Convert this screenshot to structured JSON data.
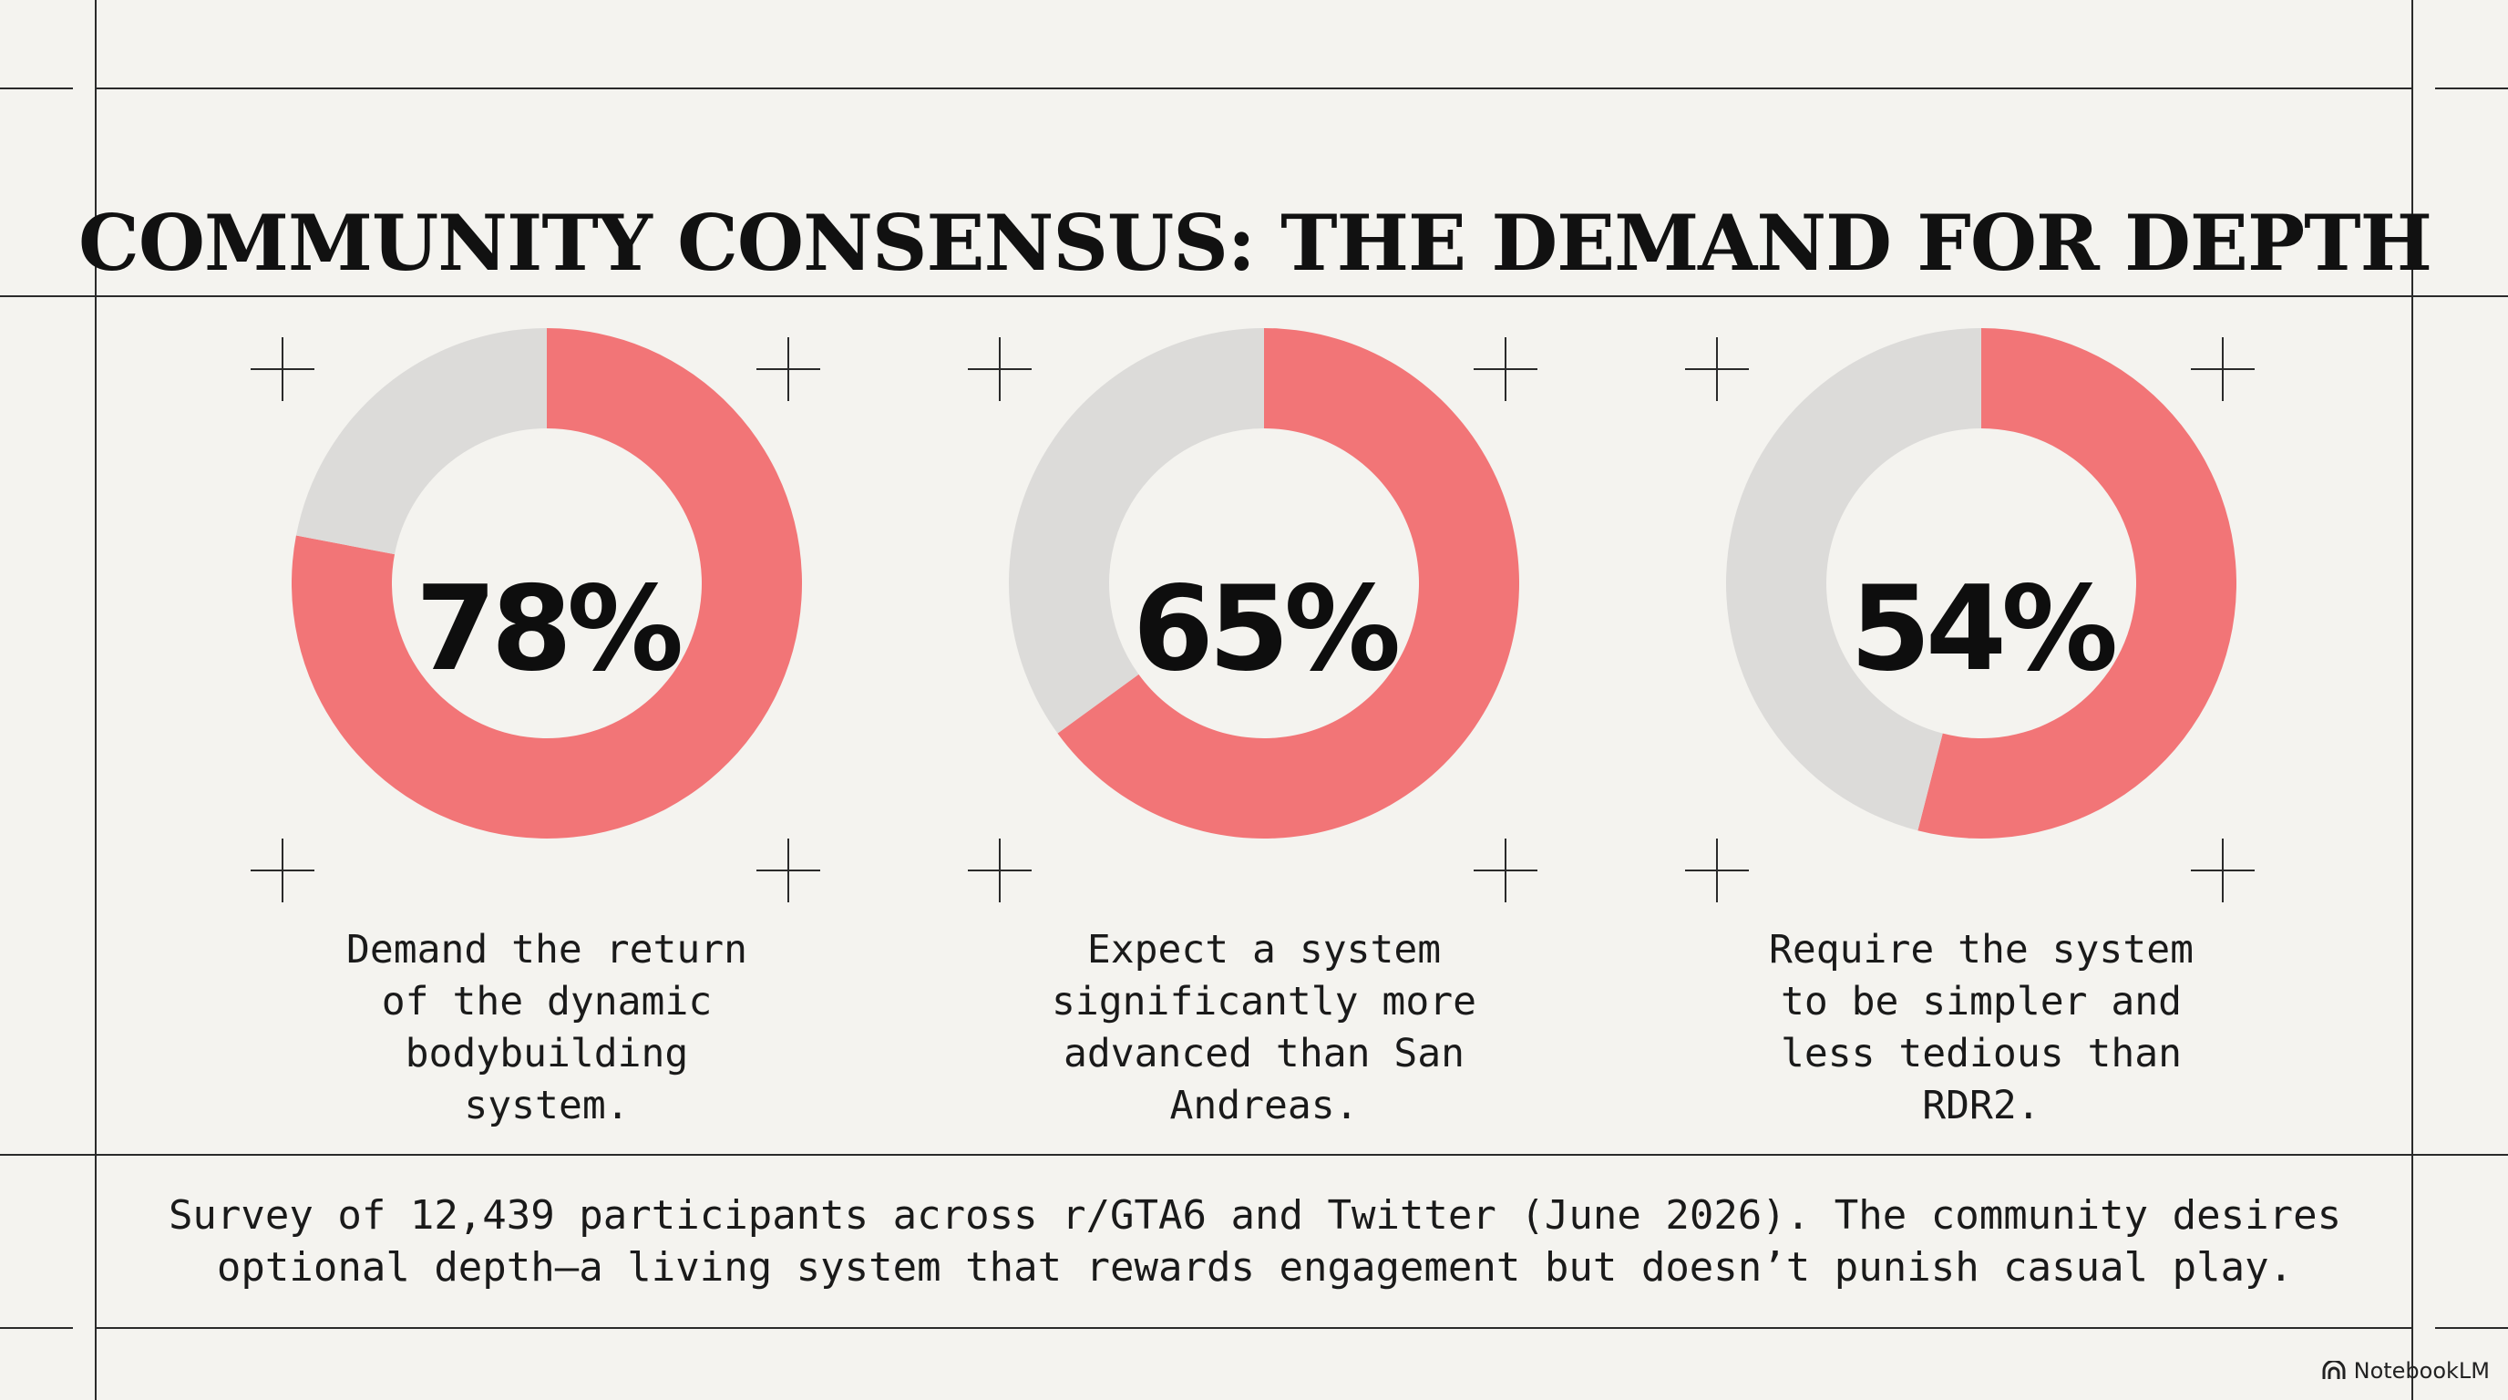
{
  "title": "COMMUNITY CONSENSUS: THE DEMAND FOR DEPTH",
  "colors": {
    "accent": "#f27577",
    "remainder": "#dcdbd9",
    "background": "#f4f3ef"
  },
  "chart_data": [
    {
      "type": "pie",
      "style": "donut",
      "values": [
        78,
        22
      ],
      "label": "78%",
      "caption": "Demand the return of the dynamic bodybuilding system."
    },
    {
      "type": "pie",
      "style": "donut",
      "values": [
        65,
        35
      ],
      "label": "65%",
      "caption": "Expect a system significantly more advanced than San Andreas."
    },
    {
      "type": "pie",
      "style": "donut",
      "values": [
        54,
        46
      ],
      "label": "54%",
      "caption": "Require the system to be simpler and less tedious than RDR2."
    }
  ],
  "footer": "Survey of 12,439 participants across r/GTA6 and Twitter (June 2026). The community desires optional depth—a living system that rewards engagement but doesn’t punish casual play.",
  "brand": {
    "name": "NotebookLM",
    "icon": "notebooklm-logo-icon"
  }
}
